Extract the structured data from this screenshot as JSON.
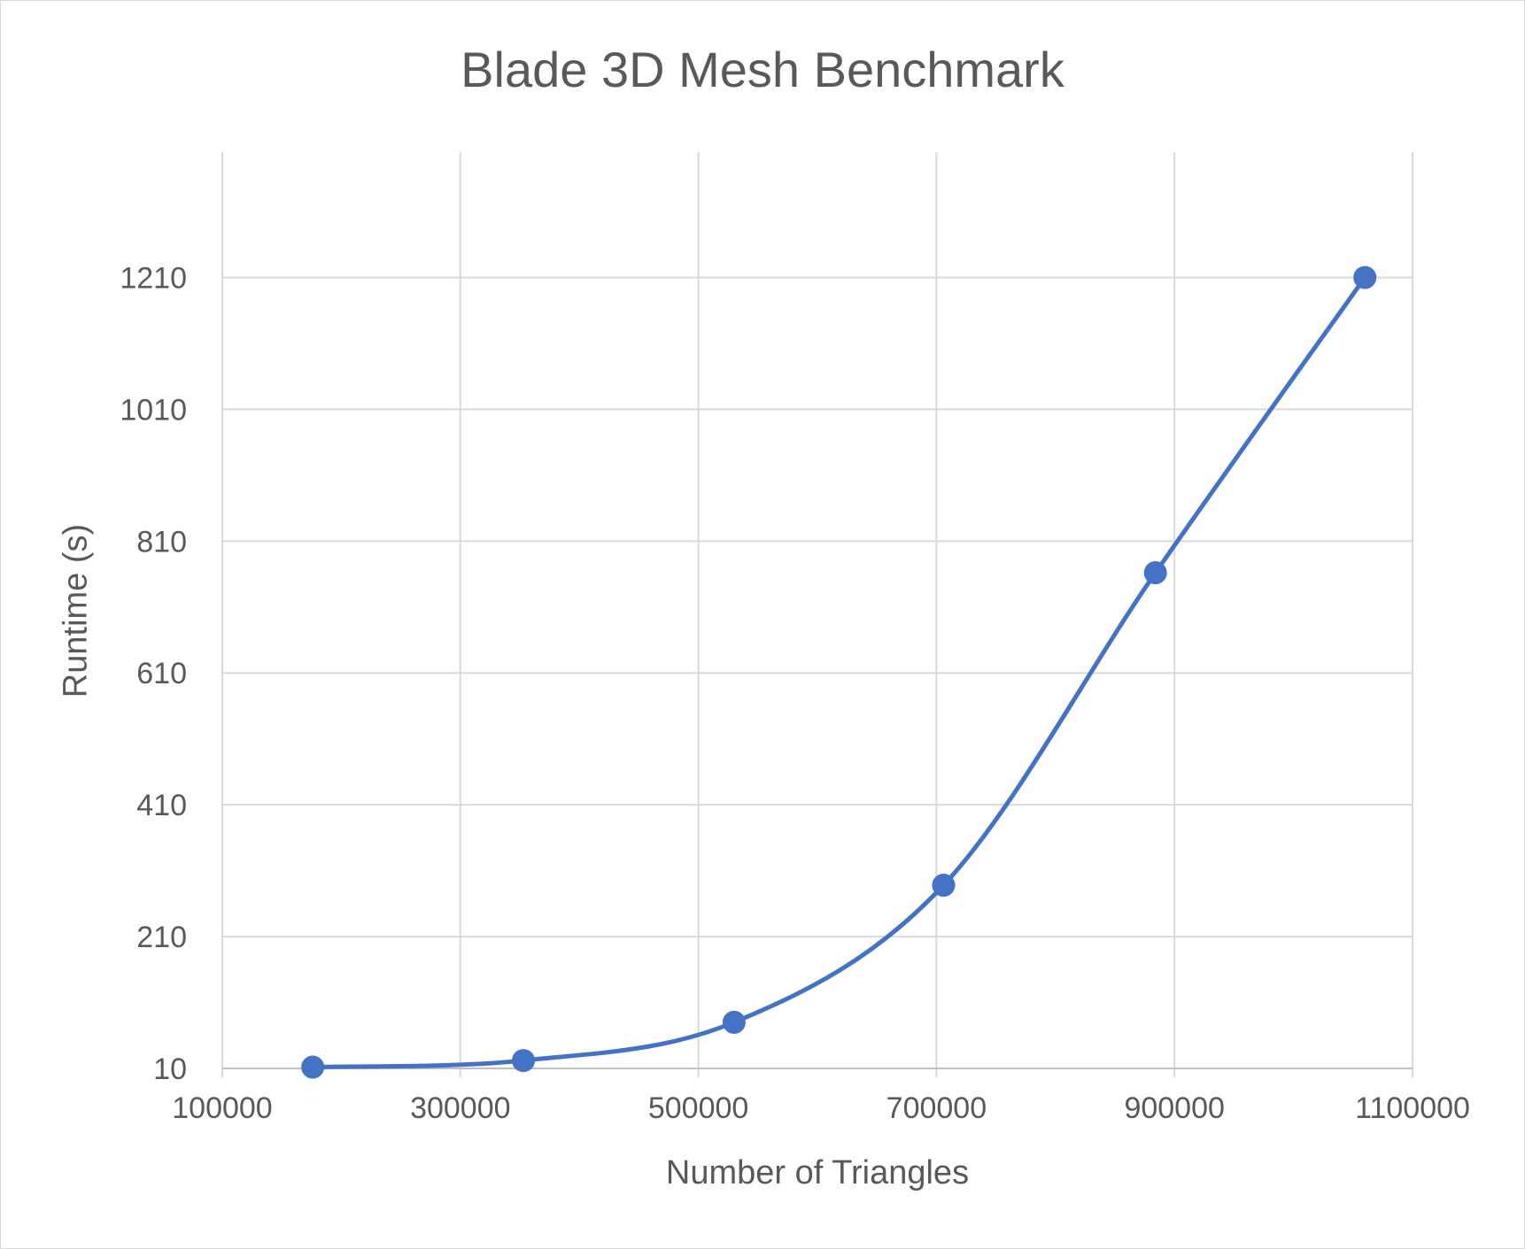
{
  "chart_data": {
    "type": "line",
    "title": "Blade 3D Mesh Benchmark",
    "xlabel": "Number of Triangles",
    "ylabel": "Runtime (s)",
    "xlim": [
      100000,
      1100000
    ],
    "ylim": [
      10,
      1400
    ],
    "x_ticks": [
      100000,
      300000,
      500000,
      700000,
      900000,
      1100000
    ],
    "y_ticks": [
      10,
      210,
      410,
      610,
      810,
      1010,
      1210
    ],
    "grid": true,
    "smooth": true,
    "series": [
      {
        "x": [
          176000,
          353000,
          530000,
          706000,
          884000,
          1060000
        ],
        "y": [
          12,
          22,
          80,
          288,
          762,
          1210
        ]
      }
    ],
    "colors": {
      "line": "#4472c4",
      "grid": "#d9d9d9",
      "text": "#595959"
    }
  }
}
